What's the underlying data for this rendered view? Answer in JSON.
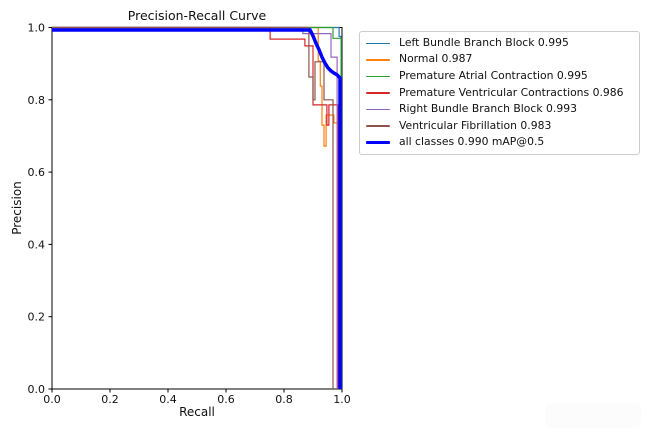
{
  "figure": {
    "background": "#ffffff",
    "spine_color": "#000000",
    "text_color": "#111111",
    "corner_badge_color": "#fcfcfc"
  },
  "chart_data": {
    "type": "line",
    "title": "Precision-Recall Curve",
    "xlabel": "Recall",
    "ylabel": "Precision",
    "xlim": [
      0,
      1
    ],
    "ylim": [
      0,
      1
    ],
    "grid": false,
    "legend_position": "outside-right",
    "xticks": {
      "values": [
        0,
        0.2,
        0.4,
        0.6,
        0.8,
        1.0
      ],
      "labels": [
        "0.0",
        "0.2",
        "0.4",
        "0.6",
        "0.8",
        "1.0"
      ]
    },
    "yticks": {
      "values": [
        0,
        0.2,
        0.4,
        0.6,
        0.8,
        1.0
      ],
      "labels": [
        "0.0",
        "0.2",
        "0.4",
        "0.6",
        "0.8",
        "1.0"
      ]
    },
    "series": [
      {
        "name": "Left Bundle Branch Block",
        "ap": 0.995,
        "label": "Left Bundle Branch Block 0.995",
        "color": "#1f77b4",
        "linewidth": 1.2,
        "points": [
          [
            0,
            1
          ],
          [
            0.99,
            1
          ],
          [
            0.99,
            0.975
          ],
          [
            0.997,
            0.975
          ],
          [
            0.997,
            0
          ]
        ]
      },
      {
        "name": "Normal",
        "ap": 0.987,
        "label": "Normal 0.987",
        "color": "#ff7f0e",
        "linewidth": 1.2,
        "points": [
          [
            0,
            1
          ],
          [
            0.918,
            1
          ],
          [
            0.918,
            0.907
          ],
          [
            0.925,
            0.907
          ],
          [
            0.925,
            0.838
          ],
          [
            0.931,
            0.838
          ],
          [
            0.931,
            0.73
          ],
          [
            0.938,
            0.73
          ],
          [
            0.938,
            0.672
          ],
          [
            0.945,
            0.672
          ],
          [
            0.945,
            0.758
          ],
          [
            0.972,
            0.758
          ],
          [
            0.972,
            0.736
          ],
          [
            0.986,
            0.736
          ],
          [
            0.986,
            0
          ]
        ]
      },
      {
        "name": "Premature Atrial Contraction",
        "ap": 0.995,
        "label": "Premature Atrial Contraction 0.995",
        "color": "#2ca02c",
        "linewidth": 1.2,
        "points": [
          [
            0,
            1
          ],
          [
            0.969,
            1
          ],
          [
            0.969,
            0.97
          ],
          [
            0.997,
            0.97
          ],
          [
            0.997,
            0
          ]
        ]
      },
      {
        "name": "Premature Ventricular Contractions",
        "ap": 0.986,
        "label": "Premature Ventricular Contractions 0.986",
        "color": "#d62728",
        "linewidth": 1.2,
        "points": [
          [
            0,
            1
          ],
          [
            0.752,
            1
          ],
          [
            0.752,
            0.968
          ],
          [
            0.872,
            0.968
          ],
          [
            0.872,
            0.949
          ],
          [
            0.9,
            0.949
          ],
          [
            0.9,
            0.786
          ],
          [
            0.948,
            0.786
          ],
          [
            0.948,
            0.73
          ],
          [
            0.955,
            0.73
          ],
          [
            0.955,
            0.786
          ],
          [
            0.986,
            0.786
          ],
          [
            0.986,
            0
          ]
        ]
      },
      {
        "name": "Right Bundle Branch Block",
        "ap": 0.993,
        "label": "Right Bundle Branch Block 0.993",
        "color": "#9467bd",
        "linewidth": 1.2,
        "points": [
          [
            0,
            1
          ],
          [
            0.865,
            1
          ],
          [
            0.865,
            0.983
          ],
          [
            0.962,
            0.983
          ],
          [
            0.962,
            0.918
          ],
          [
            0.983,
            0.918
          ],
          [
            0.983,
            0
          ]
        ]
      },
      {
        "name": "Ventricular Fibrillation",
        "ap": 0.983,
        "label": "Ventricular Fibrillation 0.983",
        "color": "#8c564b",
        "linewidth": 1.2,
        "points": [
          [
            0,
            1
          ],
          [
            0.886,
            1
          ],
          [
            0.886,
            0.863
          ],
          [
            0.9,
            0.863
          ],
          [
            0.9,
            0.8
          ],
          [
            0.907,
            0.8
          ],
          [
            0.907,
            0.905
          ],
          [
            0.938,
            0.905
          ],
          [
            0.938,
            0.8
          ],
          [
            0.969,
            0.8
          ],
          [
            0.969,
            0
          ]
        ]
      },
      {
        "name": "all classes",
        "ap": 0.99,
        "label": "all classes 0.990 mAP@0.5",
        "color": "#0000ff",
        "linewidth": 3.5,
        "points": [
          [
            0,
            0.993
          ],
          [
            0.89,
            0.993
          ],
          [
            0.9,
            0.977
          ],
          [
            0.91,
            0.957
          ],
          [
            0.921,
            0.938
          ],
          [
            0.931,
            0.918
          ],
          [
            0.941,
            0.902
          ],
          [
            0.952,
            0.888
          ],
          [
            0.962,
            0.88
          ],
          [
            0.972,
            0.874
          ],
          [
            0.983,
            0.869
          ],
          [
            0.99,
            0.863
          ],
          [
            0.993,
            0.86
          ],
          [
            0.993,
            0
          ]
        ]
      }
    ]
  }
}
